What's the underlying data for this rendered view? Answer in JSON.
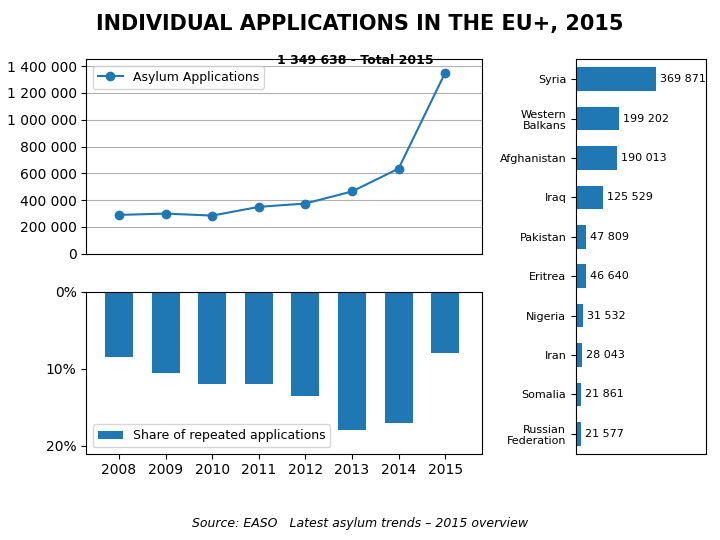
{
  "chart_data": [
    {
      "type": "line",
      "title": "INDIVIDUAL APPLICATIONS IN THE EU+, 2015",
      "x": [
        2008,
        2009,
        2010,
        2011,
        2012,
        2013,
        2014,
        2015
      ],
      "series": [
        {
          "name": "Asylum Applications",
          "values": [
            290000,
            300000,
            285000,
            350000,
            375000,
            465000,
            635000,
            1349638
          ],
          "marker": "o"
        }
      ],
      "xlim": [
        2007.3,
        2015.8
      ],
      "ylim": [
        0,
        1450000
      ],
      "yticks": [
        0,
        {
          "value": 200000,
          "label": "200 000"
        },
        {
          "value": 400000,
          "label": "400 000"
        },
        {
          "value": 600000,
          "label": "600 000"
        },
        {
          "value": 800000,
          "label": "800 000"
        },
        {
          "value": 1000000,
          "label": "1 000 000"
        },
        {
          "value": 1200000,
          "label": "1 200 000"
        },
        {
          "value": 1400000,
          "label": "1 400 000"
        }
      ],
      "grid": true,
      "legend": "upper left",
      "tick_labels": "y",
      "annotations": [
        {
          "text": "1 349 638 - Total 2015",
          "x": 2015,
          "y": 1349638
        },
        {
          "text": "Source: EASO   Latest asylum trends – 2015 overview"
        }
      ]
    },
    {
      "type": "bar",
      "x": [
        2008,
        2009,
        2010,
        2011,
        2012,
        2013,
        2014,
        2015
      ],
      "series": [
        {
          "name": "Share of repeated applications",
          "values": [
            8.5,
            10.5,
            12.0,
            12.0,
            13.5,
            18.0,
            17.0,
            8.0
          ]
        }
      ],
      "xlim": [
        2007.3,
        2015.8
      ],
      "xticks": [
        2008,
        2009,
        2010,
        2011,
        2012,
        2013,
        2014,
        2015
      ],
      "ylim": [
        21,
        0
      ],
      "yticks": [
        {
          "value": 0,
          "label": "0%"
        },
        {
          "value": 10,
          "label": "10%"
        },
        {
          "value": 20,
          "label": "20%"
        }
      ],
      "legend": "lower left"
    },
    {
      "type": "bar",
      "orientation": "horizontal",
      "categories": [
        "Syria",
        "Western\nBalkans",
        "Afghanistan",
        "Iraq",
        "Pakistan",
        "Eritrea",
        "Nigeria",
        "Iran",
        "Somalia",
        "Russian\nFederation"
      ],
      "values": [
        369871,
        199202,
        190013,
        125529,
        47809,
        46640,
        31532,
        28043,
        21861,
        21577
      ],
      "value_labels": [
        "369 871",
        "199 202",
        "190 013",
        "125 529",
        "47 809",
        "46 640",
        "31 532",
        "28 043",
        "21 861",
        "21 577"
      ],
      "data_labels": true,
      "xlim": [
        0,
        600000
      ],
      "tick_labels": "y"
    }
  ]
}
